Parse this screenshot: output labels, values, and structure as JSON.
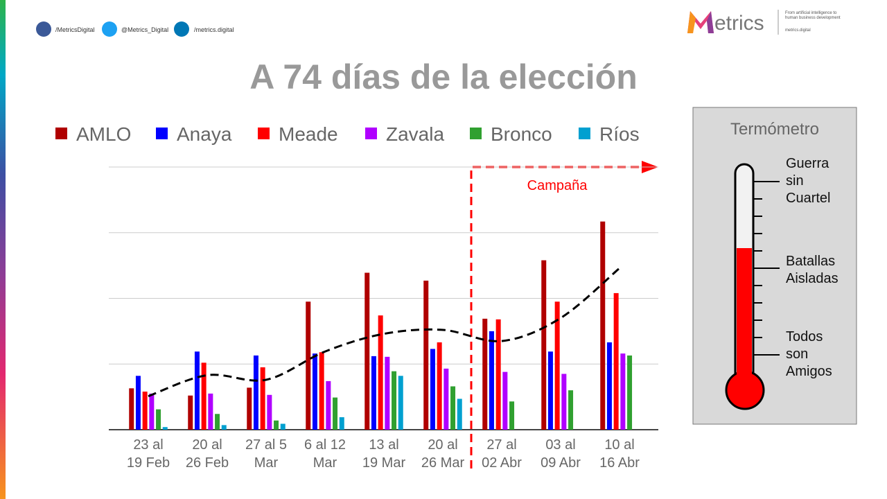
{
  "header": {
    "social": [
      "/MetricsDigital",
      "@Metrics_Digital",
      "/metrics.digital"
    ],
    "logo": "etrics",
    "tagline": "From artificial intelligence to\nhuman business development",
    "site": "metrics.digital"
  },
  "chart_data": {
    "type": "bar",
    "title": "A 74 días de la elección",
    "categories": [
      "23 al\n19 Feb",
      "20 al\n26 Feb",
      "27 al 5\nMar",
      "6 al 12\nMar",
      "13 al\n19 Mar",
      "20 al\n26 Mar",
      "27 al\n02 Abr",
      "03 al\n09 Abr",
      "10 al\n16 Abr"
    ],
    "series": [
      {
        "name": "AMLO",
        "color": "#b00000",
        "values": [
          0.63,
          0.52,
          0.64,
          1.95,
          2.39,
          2.27,
          1.69,
          2.58,
          3.17
        ]
      },
      {
        "name": "Anaya",
        "color": "#0000ff",
        "values": [
          0.82,
          1.19,
          1.13,
          1.16,
          1.12,
          1.23,
          1.5,
          1.19,
          1.33
        ]
      },
      {
        "name": "Meade",
        "color": "#ff0000",
        "values": [
          0.58,
          1.02,
          0.95,
          1.18,
          1.74,
          1.33,
          1.68,
          1.95,
          2.08
        ]
      },
      {
        "name": "Zavala",
        "color": "#b000ff",
        "values": [
          0.55,
          0.55,
          0.53,
          0.74,
          1.11,
          0.93,
          0.88,
          0.85,
          1.16
        ]
      },
      {
        "name": "Bronco",
        "color": "#30a030",
        "values": [
          0.31,
          0.24,
          0.14,
          0.49,
          0.89,
          0.66,
          0.43,
          0.6,
          1.13
        ]
      },
      {
        "name": "Ríos",
        "color": "#00a0d0",
        "values": [
          0.04,
          0.07,
          0.09,
          0.19,
          0.82,
          0.47,
          null,
          null,
          null
        ]
      }
    ],
    "trend": {
      "color": "#000000",
      "values": [
        0.51,
        0.83,
        0.76,
        1.19,
        1.46,
        1.52,
        1.35,
        1.7,
        2.46
      ]
    },
    "ylim": [
      0,
      4
    ],
    "yticks": [
      0,
      1,
      2,
      3,
      4
    ],
    "grid": true,
    "tick_labels": false,
    "annotation": "Campaña",
    "annotation_color": "#ff0000"
  },
  "thermometer": {
    "title": "Termómetro",
    "levels": [
      "Guerra\nsin\nCuartel",
      "Batallas\nAisladas",
      "Todos\nson\nAmigos"
    ]
  }
}
